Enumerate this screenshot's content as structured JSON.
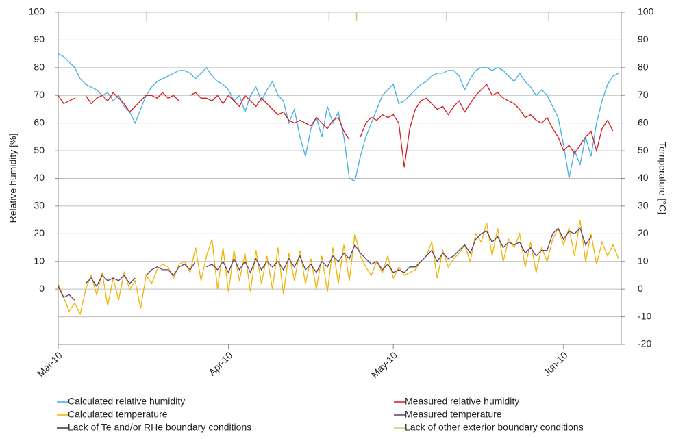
{
  "chart_data": {
    "type": "line",
    "y_label": "Relative humidity [%]",
    "y2_label": "Temperature [°C]",
    "xlim": [
      0,
      102.5
    ],
    "xticks": [
      {
        "value": 0,
        "label": "Mar-10"
      },
      {
        "value": 31,
        "label": "Apr-10"
      },
      {
        "value": 61,
        "label": "May-10"
      },
      {
        "value": 92,
        "label": "Jun-10"
      }
    ],
    "ylim": [
      -20,
      100
    ],
    "yticks": [
      0,
      10,
      20,
      30,
      40,
      50,
      60,
      70,
      80,
      90,
      100
    ],
    "y2lim": [
      -20,
      100
    ],
    "y2ticks": [
      -20,
      -10,
      0,
      10,
      20,
      30,
      40,
      50,
      60,
      70,
      80,
      90,
      100
    ],
    "grid": true,
    "legend": "bottom",
    "x": [
      0,
      1,
      2,
      3,
      4,
      5,
      6,
      7,
      8,
      9,
      10,
      11,
      12,
      13,
      14,
      15,
      16,
      17,
      18,
      19,
      20,
      21,
      22,
      23,
      24,
      25,
      26,
      27,
      28,
      29,
      30,
      31,
      32,
      33,
      34,
      35,
      36,
      37,
      38,
      39,
      40,
      41,
      42,
      43,
      44,
      45,
      46,
      47,
      48,
      49,
      50,
      51,
      52,
      53,
      54,
      55,
      56,
      57,
      58,
      59,
      60,
      61,
      62,
      63,
      64,
      65,
      66,
      67,
      68,
      69,
      70,
      71,
      72,
      73,
      74,
      75,
      76,
      77,
      78,
      79,
      80,
      81,
      82,
      83,
      84,
      85,
      86,
      87,
      88,
      89,
      90,
      91,
      92,
      93,
      94,
      95,
      96,
      97,
      98,
      99,
      100,
      101,
      102
    ],
    "series": [
      {
        "name": "Calculated relative humidity",
        "color": "#3fb0e0",
        "values": [
          85,
          84,
          82,
          80,
          76,
          74,
          73,
          72,
          70,
          71,
          68,
          70,
          66,
          64,
          60,
          65,
          70,
          73,
          75,
          76,
          77,
          78,
          79,
          79,
          78,
          76,
          78,
          80,
          77,
          75,
          74,
          72,
          68,
          70,
          64,
          70,
          73,
          68,
          72,
          75,
          70,
          68,
          60,
          65,
          55,
          48,
          58,
          62,
          55,
          66,
          60,
          64,
          55,
          40,
          39,
          48,
          55,
          60,
          65,
          70,
          72,
          74,
          67,
          68,
          70,
          72,
          74,
          75,
          77,
          78,
          78,
          79,
          79,
          77,
          72,
          76,
          79,
          80,
          80,
          79,
          80,
          79,
          77,
          75,
          78,
          75,
          73,
          70,
          72,
          70,
          66,
          62,
          52,
          40,
          50,
          45,
          55,
          48,
          60,
          68,
          74,
          77,
          78
        ]
      },
      {
        "name": "Measured relative humidity",
        "color": "#d7191c",
        "values": [
          70,
          67,
          68,
          69,
          null,
          70,
          67,
          69,
          70,
          68,
          71,
          69,
          67,
          64,
          66,
          68,
          70,
          70,
          69,
          71,
          69,
          70,
          68,
          null,
          70,
          71,
          69,
          69,
          68,
          70,
          67,
          70,
          68,
          66,
          70,
          68,
          66,
          69,
          67,
          65,
          63,
          64,
          61,
          60,
          61,
          60,
          59,
          62,
          60,
          58,
          61,
          62,
          57,
          54,
          null,
          55,
          60,
          62,
          61,
          63,
          62,
          63,
          60,
          44,
          58,
          65,
          68,
          69,
          67,
          65,
          66,
          63,
          66,
          68,
          64,
          67,
          70,
          72,
          74,
          70,
          71,
          69,
          68,
          67,
          65,
          62,
          63,
          61,
          60,
          62,
          58,
          55,
          50,
          52,
          49,
          52,
          55,
          57,
          50,
          58,
          61,
          57,
          null
        ]
      },
      {
        "name": "Calculated temperature",
        "color": "#f0b400",
        "axis": "y2",
        "values": [
          2,
          -3,
          -8,
          -5,
          -9,
          0,
          5,
          -2,
          6,
          -6,
          4,
          -4,
          6,
          0,
          3,
          -7,
          5,
          2,
          7,
          9,
          8,
          4,
          9,
          10,
          6,
          15,
          3,
          12,
          18,
          0,
          15,
          -1,
          14,
          3,
          13,
          -1,
          14,
          2,
          12,
          0,
          15,
          -2,
          13,
          3,
          14,
          2,
          11,
          0,
          12,
          -1,
          15,
          2,
          16,
          3,
          20,
          12,
          8,
          5,
          10,
          6,
          12,
          4,
          8,
          5,
          6,
          7,
          10,
          12,
          17,
          4,
          14,
          8,
          11,
          13,
          16,
          10,
          20,
          17,
          24,
          12,
          22,
          10,
          18,
          15,
          20,
          8,
          17,
          6,
          15,
          10,
          18,
          22,
          16,
          22,
          12,
          25,
          10,
          20,
          9,
          17,
          12,
          16,
          11
        ]
      },
      {
        "name": "Measured temperature",
        "color": "#5b3f6e",
        "axis": "y2",
        "values": [
          1,
          -3,
          -2,
          -4,
          null,
          2,
          4,
          1,
          5,
          3,
          4,
          3,
          5,
          2,
          4,
          null,
          5,
          7,
          8,
          7,
          7,
          5,
          8,
          9,
          7,
          10,
          null,
          8,
          9,
          7,
          10,
          6,
          11,
          7,
          10,
          6,
          11,
          7,
          10,
          8,
          10,
          7,
          11,
          8,
          12,
          7,
          9,
          6,
          10,
          8,
          12,
          10,
          13,
          11,
          16,
          13,
          11,
          9,
          10,
          7,
          9,
          6,
          7,
          6,
          8,
          8,
          10,
          12,
          14,
          10,
          13,
          11,
          12,
          14,
          16,
          13,
          18,
          20,
          21,
          17,
          19,
          15,
          17,
          16,
          17,
          13,
          15,
          12,
          14,
          14,
          20,
          22,
          18,
          21,
          20,
          22,
          16,
          19,
          null,
          null,
          null,
          null,
          null
        ]
      },
      {
        "name": "Lack of Te and/or RHe boundary conditions",
        "color": "#333333",
        "marks_x": []
      },
      {
        "name": "Lack of other exterior boundary conditions",
        "color": "#c2cc7a",
        "marks_x": [
          16.1,
          49.3,
          54.3,
          70.7,
          89.3
        ]
      }
    ]
  }
}
